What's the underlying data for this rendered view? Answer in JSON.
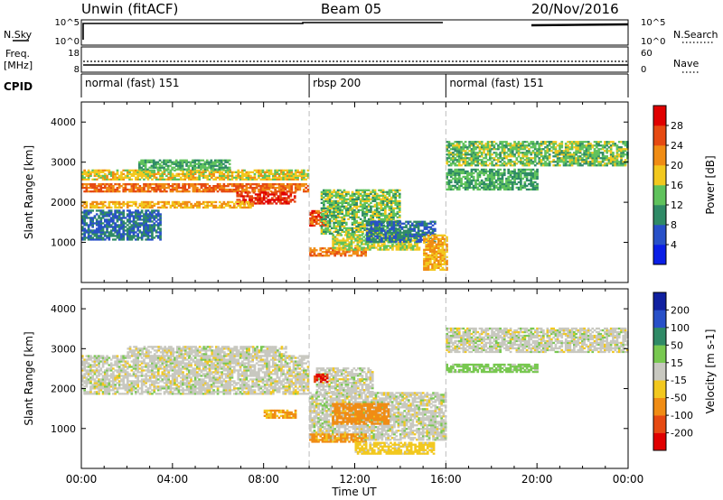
{
  "header": {
    "title": "Unwin (fitACF)",
    "beam": "Beam 05",
    "date": "20/Nov/2016"
  },
  "left_labels": {
    "nsky": "N.Sky",
    "freq": "Freq.",
    "freq_unit": "[MHz]",
    "cpid": "CPID"
  },
  "right_labels": {
    "nsearch": "N.Search",
    "nave": "Nave"
  },
  "cpid_segments": [
    {
      "label": "normal (fast) 151",
      "start_hour": 0
    },
    {
      "label": "rbsp 200",
      "start_hour": 10
    },
    {
      "label": "normal (fast) 151",
      "start_hour": 16
    }
  ],
  "noise_ticks_left": [
    "10^5",
    "10^0"
  ],
  "noise_ticks_right": [
    "10^5",
    "10^0"
  ],
  "freq_ticks_left": [
    "18",
    "8"
  ],
  "freq_ticks_right": [
    "60",
    "0"
  ],
  "colors": {
    "power": [
      "#0a1ee6",
      "#2850c8",
      "#2f8a66",
      "#5fc25c",
      "#f2c81e",
      "#f08c14",
      "#e64a12",
      "#e00000"
    ],
    "velocity": [
      "#e00000",
      "#e64a12",
      "#f08c14",
      "#f2c81e",
      "#c8c8c0",
      "#78c850",
      "#2f8a66",
      "#2850c8",
      "#1020a0"
    ],
    "ground_scatter": "#c8c8c0"
  },
  "chart_data": [
    {
      "type": "heatmap",
      "title": "",
      "xlabel": "Time UT",
      "ylabel": "Slant Range [km]",
      "xlim": [
        0,
        24
      ],
      "ylim": [
        0,
        4500
      ],
      "x_ticks": [
        "00:00",
        "04:00",
        "08:00",
        "12:00",
        "16:00",
        "20:00",
        "00:00"
      ],
      "y_ticks": [
        "1000",
        "2000",
        "3000",
        "4000"
      ],
      "colorbar": {
        "label": "Power [dB]",
        "ticks": [
          "4",
          "8",
          "12",
          "16",
          "20",
          "24",
          "28"
        ],
        "range": [
          0,
          32
        ]
      },
      "bands": [
        {
          "t0": 0.0,
          "t1": 9.9,
          "r0": 2250,
          "r1": 2450,
          "value": 24
        },
        {
          "t0": 6.8,
          "t1": 9.4,
          "r0": 1950,
          "r1": 2250,
          "value": 28
        },
        {
          "t0": 0.0,
          "t1": 9.9,
          "r0": 2550,
          "r1": 2800,
          "value": 18
        },
        {
          "t0": 0.0,
          "t1": 7.5,
          "r0": 1850,
          "r1": 2000,
          "value": 20
        },
        {
          "t0": 0.0,
          "t1": 3.5,
          "r0": 1050,
          "r1": 1800,
          "value": 8
        },
        {
          "t0": 2.5,
          "t1": 6.5,
          "r0": 2800,
          "r1": 3050,
          "value": 12
        },
        {
          "t0": 10.0,
          "t1": 10.8,
          "r0": 1400,
          "r1": 1800,
          "value": 26
        },
        {
          "t0": 10.5,
          "t1": 14.0,
          "r0": 1200,
          "r1": 2300,
          "value": 14
        },
        {
          "t0": 10.0,
          "t1": 12.5,
          "r0": 650,
          "r1": 850,
          "value": 24
        },
        {
          "t0": 11.0,
          "t1": 14.8,
          "r0": 800,
          "r1": 1200,
          "value": 16
        },
        {
          "t0": 12.5,
          "t1": 15.5,
          "r0": 1000,
          "r1": 1500,
          "value": 8
        },
        {
          "t0": 15.0,
          "t1": 16.0,
          "r0": 300,
          "r1": 1200,
          "value": 20
        },
        {
          "t0": 16.0,
          "t1": 24.0,
          "r0": 2900,
          "r1": 3500,
          "value": 14
        },
        {
          "t0": 16.0,
          "t1": 20.0,
          "r0": 2300,
          "r1": 2800,
          "value": 12
        }
      ]
    },
    {
      "type": "heatmap",
      "title": "",
      "xlabel": "Time UT",
      "ylabel": "Slant Range [km]",
      "xlim": [
        0,
        24
      ],
      "ylim": [
        0,
        4500
      ],
      "x_ticks": [
        "00:00",
        "04:00",
        "08:00",
        "12:00",
        "16:00",
        "20:00",
        "00:00"
      ],
      "y_ticks": [
        "1000",
        "2000",
        "3000",
        "4000"
      ],
      "colorbar": {
        "label": "Velocity [m s-1]",
        "ticks": [
          "-200",
          "-100",
          "-50",
          "-15",
          "15",
          "50",
          "100",
          "200"
        ],
        "range": [
          -250,
          250
        ]
      },
      "bands": [
        {
          "t0": 0.0,
          "t1": 9.9,
          "r0": 1850,
          "r1": 2800,
          "value": 0
        },
        {
          "t0": 2.0,
          "t1": 9.0,
          "r0": 2800,
          "r1": 3050,
          "value": 0
        },
        {
          "t0": 10.0,
          "t1": 16.0,
          "r0": 700,
          "r1": 1900,
          "value": 0
        },
        {
          "t0": 10.3,
          "t1": 12.8,
          "r0": 1900,
          "r1": 2500,
          "value": 0
        },
        {
          "t0": 8.0,
          "t1": 9.4,
          "r0": 1250,
          "r1": 1450,
          "value": -60
        },
        {
          "t0": 10.0,
          "t1": 12.5,
          "r0": 650,
          "r1": 850,
          "value": -60
        },
        {
          "t0": 11.0,
          "t1": 13.5,
          "r0": 1100,
          "r1": 1600,
          "value": -80
        },
        {
          "t0": 10.2,
          "t1": 10.8,
          "r0": 2150,
          "r1": 2350,
          "value": -200
        },
        {
          "t0": 12.0,
          "t1": 15.5,
          "r0": 350,
          "r1": 650,
          "value": -30
        },
        {
          "t0": 16.0,
          "t1": 24.0,
          "r0": 2900,
          "r1": 3500,
          "value": 0
        },
        {
          "t0": 16.0,
          "t1": 20.0,
          "r0": 2400,
          "r1": 2600,
          "value": 30
        }
      ]
    }
  ]
}
